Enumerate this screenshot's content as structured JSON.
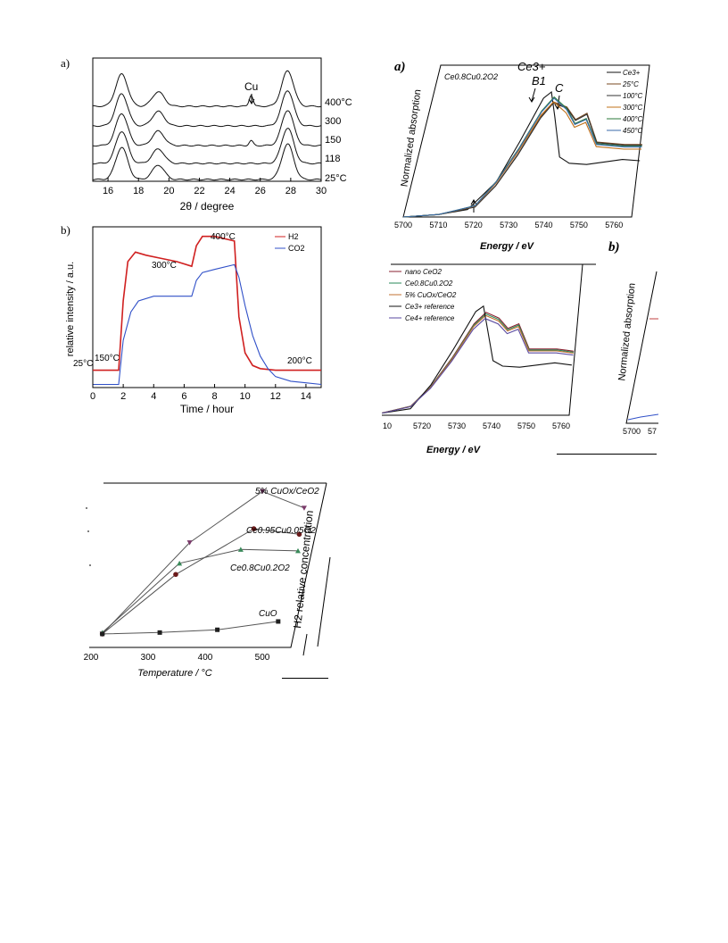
{
  "figures": {
    "fig_a": {
      "panel_label": "a)",
      "peak_label": "Cu",
      "xlabel": "2θ / degree",
      "xticks": [
        "16",
        "18",
        "20",
        "22",
        "24",
        "26",
        "28",
        "30"
      ],
      "trace_labels": [
        "400°C",
        "300",
        "150",
        "118",
        "25°C"
      ]
    },
    "fig_b": {
      "panel_label": "b)",
      "ylabel": "relative intensity / a.u.",
      "xlabel": "Time / hour",
      "xticks": [
        "0",
        "2",
        "4",
        "6",
        "8",
        "10",
        "12",
        "14"
      ],
      "legend": [
        "H2",
        "CO2"
      ],
      "annotations": [
        "150°C",
        "25°C",
        "300°C",
        "400°C",
        "200°C"
      ]
    },
    "fig_xanes_a": {
      "panel_label": "a)",
      "composition": "Ce0.8Cu0.2O2",
      "top_label": "Ce3+",
      "peak_labels": [
        "B1",
        "C"
      ],
      "ylabel": "Normalized absorption",
      "xlabel": "Energy / eV",
      "xticks": [
        "5700",
        "5710",
        "5720",
        "5730",
        "5740",
        "5750",
        "5760"
      ],
      "legend": [
        "Ce3+",
        "25°C",
        "100°C",
        "300°C",
        "400°C",
        "450°C"
      ]
    },
    "fig_xanes_b": {
      "panel_label": "b)",
      "xlabel": "Energy / eV",
      "xticks": [
        "10",
        "5720",
        "5730",
        "5740",
        "5750",
        "5760"
      ],
      "legend": [
        "nano CeO2",
        "Ce0.8Cu0.2O2",
        "5% CuOx/CeO2",
        "Ce3+ reference",
        "Ce4+ reference"
      ]
    },
    "fig_xanes_c": {
      "ylabel": "Normalized absorption",
      "xticks": [
        "5700",
        "57"
      ]
    },
    "fig_tpr": {
      "xlabel": "Temperature / °C",
      "xticks": [
        "200",
        "300",
        "400",
        "500"
      ],
      "side_ylabel": "H2 relative concentration",
      "series_labels": [
        "5% CuOx/CeO2",
        "Ce0.95Cu0.05O2",
        "Ce0.8Cu0.2O2",
        "CuO"
      ]
    }
  },
  "chart_data": [
    {
      "type": "line",
      "xlabel": "2θ / degree",
      "ylabel": "",
      "xlim": [
        15,
        30
      ],
      "series": [
        {
          "name": "400°C",
          "peaks": [
            [
              16.9,
              1.0
            ],
            [
              19.3,
              0.45
            ],
            [
              25.4,
              0.35
            ],
            [
              27.8,
              1.1
            ]
          ]
        },
        {
          "name": "300",
          "peaks": [
            [
              16.9,
              1.0
            ],
            [
              19.3,
              0.45
            ],
            [
              25.4,
              0.0
            ],
            [
              27.8,
              1.1
            ]
          ]
        },
        {
          "name": "150",
          "peaks": [
            [
              16.9,
              1.0
            ],
            [
              19.3,
              0.45
            ],
            [
              25.4,
              0.15
            ],
            [
              27.8,
              1.1
            ]
          ]
        },
        {
          "name": "118",
          "peaks": [
            [
              16.9,
              1.0
            ],
            [
              19.3,
              0.45
            ],
            [
              25.4,
              0.0
            ],
            [
              27.8,
              1.1
            ]
          ]
        },
        {
          "name": "25°C",
          "peaks": [
            [
              16.9,
              1.0
            ],
            [
              19.3,
              0.45
            ],
            [
              25.4,
              0.0
            ],
            [
              27.8,
              1.1
            ]
          ]
        }
      ]
    },
    {
      "type": "line",
      "xlabel": "Time / hour",
      "ylabel": "relative intensity / a.u.",
      "xlim": [
        0,
        15
      ],
      "series": [
        {
          "name": "H2",
          "color": "#d02020",
          "x": [
            0,
            1.7,
            2.0,
            2.3,
            2.8,
            3.5,
            4.5,
            5.5,
            6.5,
            6.8,
            7.2,
            8,
            9.3,
            9.6,
            10,
            10.5,
            11,
            12,
            13,
            14,
            15
          ],
          "y": [
            0.11,
            0.11,
            0.55,
            0.8,
            0.86,
            0.84,
            0.82,
            0.8,
            0.77,
            0.9,
            0.96,
            0.96,
            0.93,
            0.45,
            0.22,
            0.14,
            0.12,
            0.11,
            0.11,
            0.11,
            0.11
          ]
        },
        {
          "name": "CO2",
          "color": "#3050c8",
          "x": [
            0,
            1.7,
            2.0,
            2.5,
            3,
            4,
            5,
            6.5,
            6.8,
            7.2,
            8,
            9.3,
            9.6,
            10,
            10.5,
            11,
            11.5,
            12,
            13,
            14,
            15
          ],
          "y": [
            0.02,
            0.02,
            0.3,
            0.48,
            0.55,
            0.58,
            0.58,
            0.58,
            0.68,
            0.73,
            0.75,
            0.78,
            0.7,
            0.52,
            0.33,
            0.2,
            0.12,
            0.07,
            0.04,
            0.03,
            0.02
          ]
        }
      ]
    },
    {
      "type": "line",
      "xlabel": "Energy / eV",
      "ylabel": "Normalized absorption",
      "xlim": [
        5700,
        5765
      ],
      "series": [
        {
          "name": "Ce3+",
          "x": [
            5700,
            5710,
            5718,
            5725,
            5730,
            5735,
            5737,
            5739,
            5742,
            5745,
            5750,
            5760,
            5765
          ],
          "y": [
            0,
            0.02,
            0.06,
            0.28,
            0.6,
            0.95,
            1.0,
            0.8,
            0.48,
            0.43,
            0.42,
            0.46,
            0.45
          ]
        },
        {
          "name": "25°C",
          "x": [
            5700,
            5710,
            5720,
            5725,
            5730,
            5735,
            5738,
            5742,
            5745,
            5748,
            5752,
            5760,
            5765
          ],
          "y": [
            0,
            0.02,
            0.08,
            0.25,
            0.5,
            0.8,
            0.92,
            0.88,
            0.78,
            0.83,
            0.6,
            0.58,
            0.58
          ]
        },
        {
          "name": "450°C",
          "x": [
            5700,
            5710,
            5720,
            5725,
            5730,
            5735,
            5738,
            5742,
            5745,
            5748,
            5752,
            5760,
            5765
          ],
          "y": [
            0,
            0.02,
            0.09,
            0.28,
            0.54,
            0.84,
            0.95,
            0.86,
            0.74,
            0.78,
            0.58,
            0.56,
            0.56
          ]
        }
      ]
    },
    {
      "type": "line",
      "xlabel": "Energy / eV",
      "ylabel": "",
      "xlim": [
        5710,
        5765
      ],
      "series": [
        {
          "name": "nano CeO2"
        },
        {
          "name": "Ce0.8Cu0.2O2"
        },
        {
          "name": "5% CuOx/CeO2"
        },
        {
          "name": "Ce3+ reference"
        },
        {
          "name": "Ce4+ reference"
        }
      ]
    },
    {
      "type": "line",
      "xlabel": "Temperature / °C",
      "ylabel": "",
      "xlim": [
        200,
        550
      ],
      "series": [
        {
          "name": "5% CuOx/CeO2",
          "color": "#7a3a6a",
          "x": [
            210,
            350,
            470,
            545
          ],
          "y": [
            0.02,
            0.68,
            1.05,
            0.93
          ]
        },
        {
          "name": "Ce0.95Cu0.05O2",
          "color": "#6a1a1a",
          "x": [
            210,
            330,
            460,
            540
          ],
          "y": [
            0.02,
            0.45,
            0.78,
            0.74
          ]
        },
        {
          "name": "Ce0.8Cu0.2O2",
          "color": "#3a8a5a",
          "x": [
            210,
            335,
            440,
            540
          ],
          "y": [
            0.03,
            0.53,
            0.63,
            0.62
          ]
        },
        {
          "name": "CuO",
          "color": "#202020",
          "x": [
            210,
            310,
            410,
            515
          ],
          "y": [
            0.02,
            0.03,
            0.05,
            0.11
          ]
        }
      ]
    }
  ]
}
